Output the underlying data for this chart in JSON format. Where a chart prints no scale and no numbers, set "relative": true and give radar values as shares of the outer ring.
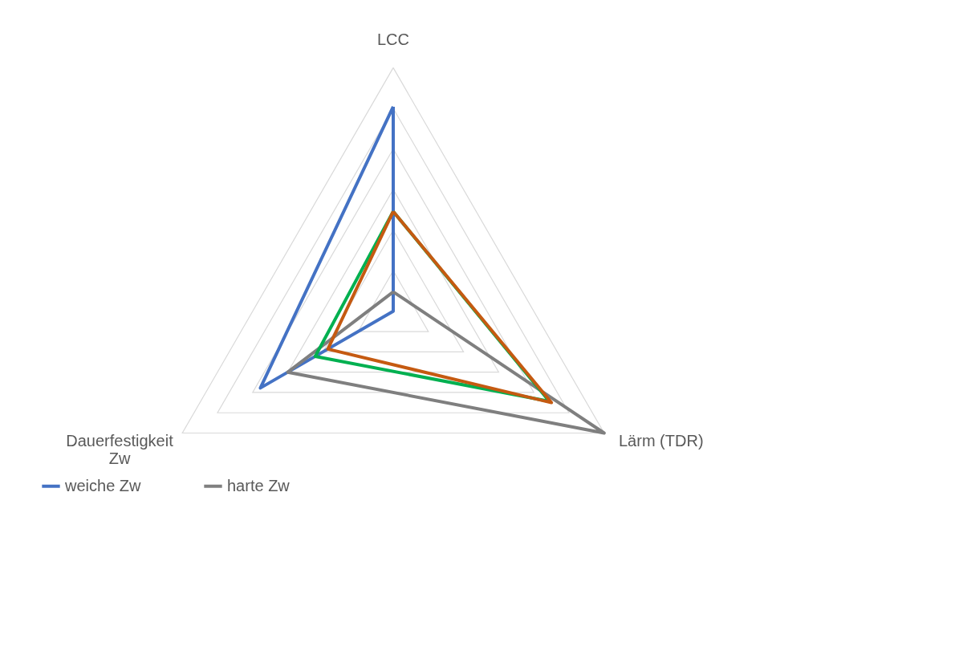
{
  "chart_data": {
    "type": "radar",
    "relative": true,
    "grid": true,
    "legend": "bottom",
    "categories": [
      "LCC",
      "Lärm (TDR)",
      "Dauerfestigkeit Zw"
    ],
    "series": [
      {
        "name": "weiche Zw",
        "color": "#4472c4",
        "values": [
          0.84,
          0,
          0.63
        ]
      },
      {
        "name": "harte Zw",
        "color": "#7f7f7f",
        "values": [
          0.08,
          1,
          0.5
        ]
      },
      {
        "color": "#00b050",
        "values": [
          0.41,
          0.74,
          0.37
        ]
      },
      {
        "color": "#c55a11",
        "values": [
          0.41,
          0.75,
          0.31
        ]
      }
    ]
  }
}
